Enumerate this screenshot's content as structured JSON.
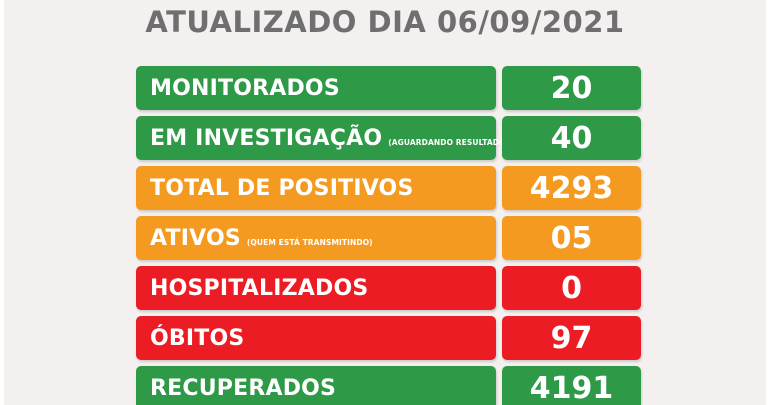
{
  "title": "ATUALIZADO DIA 06/09/2021",
  "rows": [
    {
      "label": "MONITORADOS",
      "sub": "",
      "value": "20"
    },
    {
      "label": "EM INVESTIGAÇÃO",
      "sub": "(AGUARDANDO RESULTADO)",
      "value": "40"
    },
    {
      "label": "TOTAL DE POSITIVOS",
      "sub": "",
      "value": "4293"
    },
    {
      "label": "ATIVOS",
      "sub": "(QUEM ESTÁ TRANSMITINDO)",
      "value": "05"
    },
    {
      "label": "HOSPITALIZADOS",
      "sub": "",
      "value": "0"
    },
    {
      "label": "ÓBITOS",
      "sub": "",
      "value": "97"
    },
    {
      "label": "RECUPERADOS",
      "sub": "",
      "value": "4191"
    }
  ],
  "colors": {
    "green": "#2e9a47",
    "orange": "#f49a21",
    "red": "#ec1c24",
    "title": "#6f6f6f",
    "background": "#f3f0ef"
  }
}
